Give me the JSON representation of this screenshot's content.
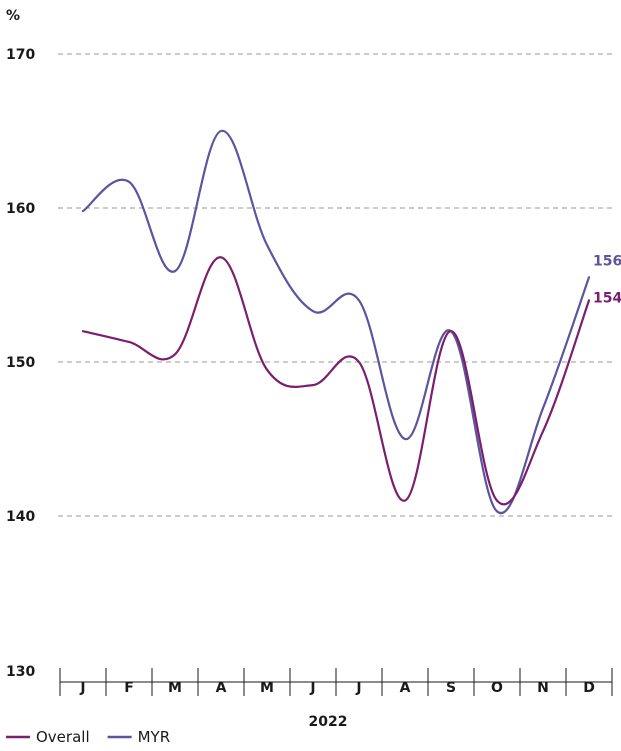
{
  "chart_data": {
    "type": "line",
    "ylabel": "%",
    "xlabel": "2022",
    "categories": [
      "J",
      "F",
      "M",
      "A",
      "M",
      "J",
      "J",
      "A",
      "S",
      "O",
      "N",
      "D"
    ],
    "ylim": [
      130,
      170
    ],
    "yticks": [
      130,
      140,
      150,
      160,
      170
    ],
    "gridlines": [
      140,
      150,
      160,
      170
    ],
    "series": [
      {
        "name": "Overall",
        "color": "#7a1f6e",
        "values": [
          152,
          151.3,
          150.5,
          156.8,
          149.5,
          148.5,
          150,
          141,
          152,
          141,
          145.5,
          154
        ],
        "end_label": "154"
      },
      {
        "name": "MYR",
        "color": "#5b559e",
        "values": [
          159.8,
          161.7,
          155.9,
          165,
          157.6,
          153.3,
          154,
          145,
          152,
          140.3,
          147,
          155.5
        ],
        "end_label": "156"
      }
    ],
    "legend_position": "bottom-left"
  }
}
